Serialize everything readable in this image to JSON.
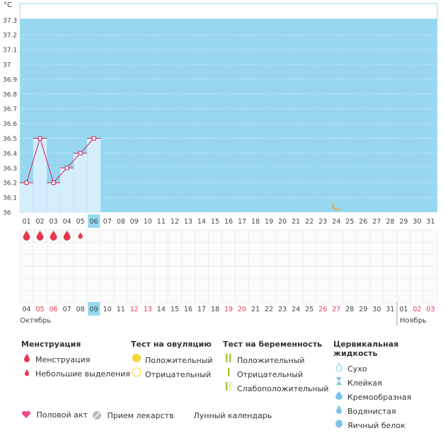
{
  "chart_data": {
    "type": "line",
    "unit_label": "°C",
    "y_ticks": [
      "37.3",
      "37.2",
      "37.1",
      "37",
      "36.9",
      "36.8",
      "36.7",
      "36.6",
      "36.5",
      "36.4",
      "36.3",
      "36.2",
      "36.1",
      "36"
    ],
    "ylim": [
      36.0,
      37.35
    ],
    "cycle_days": [
      "01",
      "02",
      "03",
      "04",
      "05",
      "06",
      "07",
      "08",
      "09",
      "10",
      "11",
      "12",
      "13",
      "14",
      "15",
      "16",
      "17",
      "18",
      "19",
      "20",
      "21",
      "22",
      "23",
      "24",
      "25",
      "26",
      "27",
      "28",
      "29",
      "30",
      "31"
    ],
    "highlight_cycle_day_index": 5,
    "temperatures": [
      36.2,
      36.5,
      36.2,
      36.3,
      36.4,
      36.5
    ],
    "menstruation_days": [
      0,
      1,
      2,
      3
    ],
    "light_spotting_days": [
      4
    ],
    "moon_day_index": 23,
    "calendar_dates": [
      "04",
      "05",
      "06",
      "07",
      "08",
      "09",
      "10",
      "11",
      "12",
      "13",
      "14",
      "15",
      "16",
      "17",
      "18",
      "19",
      "20",
      "21",
      "22",
      "23",
      "24",
      "25",
      "26",
      "27",
      "28",
      "29",
      "30",
      "31",
      "01",
      "02",
      "03"
    ],
    "weekend_date_indices": [
      1,
      2,
      8,
      9,
      15,
      16,
      22,
      23,
      29,
      30
    ],
    "highlight_date_index": 5,
    "month_oct": "Октябрь",
    "month_nov": "Ноябрь",
    "nov_start_index": 28
  },
  "legend": {
    "menstruation": {
      "title": "Менструация",
      "items": [
        "Менструация",
        "Небольшие выделения"
      ]
    },
    "ovulation_test": {
      "title": "Тест на овуляцию",
      "items": [
        "Положительный",
        "Отрицательный"
      ]
    },
    "pregnancy_test": {
      "title": "Тест на беременность",
      "items": [
        "Положительный",
        "Отрицательный",
        "Слабоположительный"
      ]
    },
    "cervical": {
      "title": "Цервикальная жидкость",
      "items": [
        "Сухо",
        "Клейкая",
        "Кремообразная",
        "Водянистая",
        "Яичный белок"
      ]
    },
    "bottom": [
      "Половой акт",
      "Прием лекарств",
      "Лунный календарь"
    ]
  },
  "colors": {
    "chart_blue": "#97d8f0",
    "light_blue": "#d6eefb",
    "line_pink": "#c9205d",
    "drop_red": "#e8384e",
    "weekend_red": "#e8384e",
    "yellow": "#f7d33a",
    "green": "#a8c43a",
    "pink": "#e94b8f",
    "orange": "#f0a030"
  }
}
